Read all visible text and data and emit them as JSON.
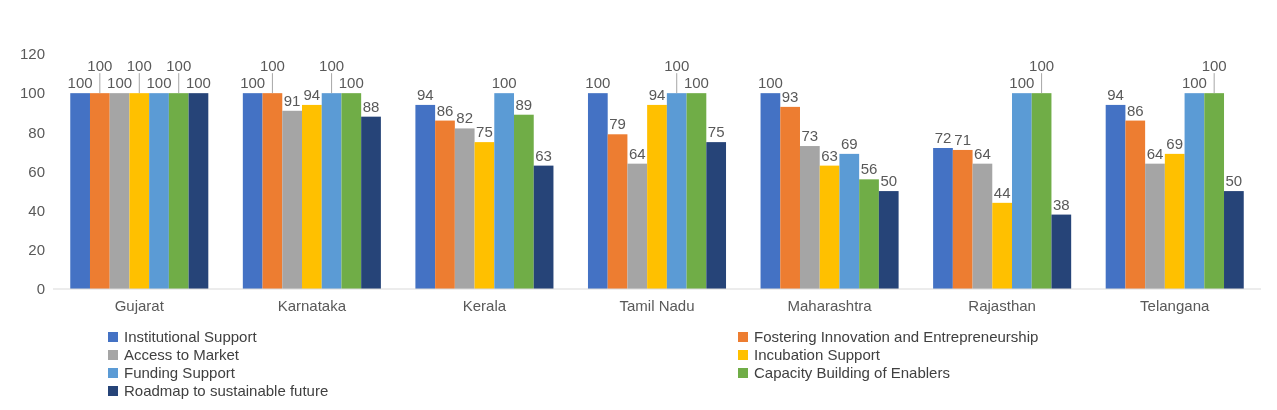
{
  "chart_data": {
    "type": "bar",
    "categories": [
      "Gujarat",
      "Karnataka",
      "Kerala",
      "Tamil Nadu",
      "Maharashtra",
      "Rajasthan",
      "Telangana"
    ],
    "series": [
      {
        "name": "Institutional Support",
        "color": "#4472c4",
        "values": [
          100,
          100,
          94,
          100,
          100,
          72,
          94
        ]
      },
      {
        "name": "Fostering Innovation and Entrepreneurship",
        "color": "#ed7d31",
        "values": [
          100,
          100,
          86,
          79,
          93,
          71,
          86
        ]
      },
      {
        "name": "Access to Market",
        "color": "#a5a5a5",
        "values": [
          100,
          91,
          82,
          64,
          73,
          64,
          64
        ]
      },
      {
        "name": "Incubation Support",
        "color": "#ffc000",
        "values": [
          100,
          94,
          75,
          94,
          63,
          44,
          69
        ]
      },
      {
        "name": "Funding Support",
        "color": "#5b9bd5",
        "values": [
          100,
          100,
          100,
          100,
          69,
          100,
          100
        ]
      },
      {
        "name": "Capacity Building of Enablers",
        "color": "#70ad47",
        "values": [
          100,
          100,
          89,
          100,
          56,
          100,
          100
        ]
      },
      {
        "name": "Roadmap to sustainable future",
        "color": "#264478",
        "values": [
          100,
          88,
          63,
          75,
          50,
          38,
          50
        ]
      }
    ],
    "ylim": [
      0,
      120
    ],
    "yticks": [
      0,
      20,
      40,
      60,
      80,
      100,
      120
    ],
    "data_labels": true,
    "legend": "bottom"
  }
}
